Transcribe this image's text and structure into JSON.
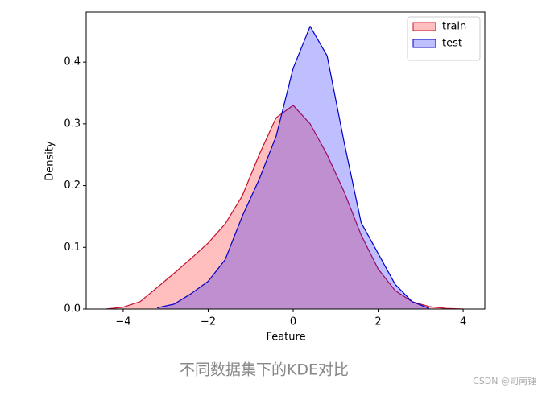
{
  "chart_data": {
    "type": "kde",
    "x_label": "Feature",
    "y_label": "Density",
    "caption": "不同数据集下的KDE对比",
    "watermark": "CSDN @司南锤",
    "x": [
      -4.4,
      -4.0,
      -3.6,
      -3.2,
      -2.8,
      -2.4,
      -2.0,
      -1.6,
      -1.2,
      -0.8,
      -0.4,
      0.0,
      0.4,
      0.8,
      1.2,
      1.6,
      2.0,
      2.4,
      2.8,
      3.2,
      3.6,
      4.0
    ],
    "series": [
      {
        "name": "train",
        "color": "#c8102e",
        "fill": "#ff0000",
        "values": [
          0.0,
          0.003,
          0.012,
          0.035,
          0.058,
          0.082,
          0.107,
          0.138,
          0.183,
          0.25,
          0.31,
          0.33,
          0.3,
          0.25,
          0.19,
          0.12,
          0.065,
          0.03,
          0.012,
          0.004,
          0.001,
          0.0
        ]
      },
      {
        "name": "test",
        "color": "#0000c8",
        "fill": "#0000ff",
        "values": [
          null,
          null,
          null,
          0.002,
          0.008,
          0.025,
          0.045,
          0.08,
          0.15,
          0.21,
          0.28,
          0.39,
          0.458,
          0.41,
          0.27,
          0.14,
          0.09,
          0.04,
          0.012,
          0.001,
          null,
          null
        ]
      }
    ],
    "xlim": [
      -4.87,
      4.51
    ],
    "ylim": [
      0,
      0.481
    ],
    "xticks": [
      {
        "value": -4,
        "label": "−4"
      },
      {
        "value": -2,
        "label": "−2"
      },
      0,
      2,
      4
    ],
    "yticks": [
      {
        "value": 0,
        "label": "0.0"
      },
      0.1,
      0.2,
      0.3,
      0.4
    ],
    "legend": "upper right"
  }
}
